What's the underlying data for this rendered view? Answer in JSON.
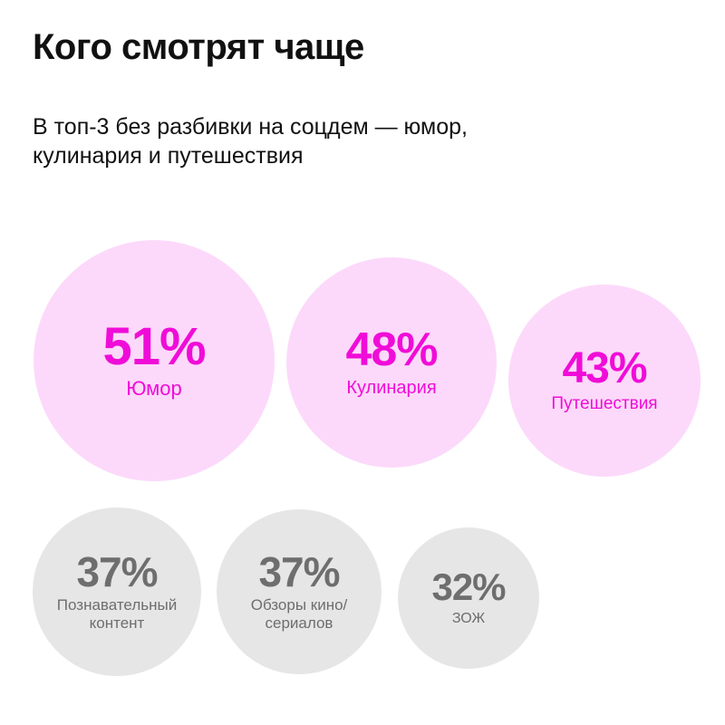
{
  "header": {
    "title": "Кого смотрят чаще",
    "subtitle": "В топ-3 без разбивки на соцдем — юмор, кулинария и путешествия"
  },
  "colors": {
    "top_fill": "#fcd9fa",
    "top_text": "#f00cd8",
    "rest_fill": "#e6e6e6",
    "rest_text": "#6e6e6e"
  },
  "chart_data": {
    "type": "bubble",
    "unit": "%",
    "categories": [
      "Юмор",
      "Кулинария",
      "Путешествия",
      "Познавательный контент",
      "Обзоры кино/сериалов",
      "ЗОЖ"
    ],
    "values": [
      51,
      48,
      43,
      37,
      37,
      32
    ],
    "highlighted": [
      true,
      true,
      true,
      false,
      false,
      false
    ],
    "items": [
      {
        "value": 51,
        "value_label": "51%",
        "label_lines": [
          "Юмор"
        ],
        "highlighted": true
      },
      {
        "value": 48,
        "value_label": "48%",
        "label_lines": [
          "Кулинария"
        ],
        "highlighted": true
      },
      {
        "value": 43,
        "value_label": "43%",
        "label_lines": [
          "Путешествия"
        ],
        "highlighted": true
      },
      {
        "value": 37,
        "value_label": "37%",
        "label_lines": [
          "Познавательный",
          "контент"
        ],
        "highlighted": false
      },
      {
        "value": 37,
        "value_label": "37%",
        "label_lines": [
          "Обзоры кино/",
          "сериалов"
        ],
        "highlighted": false
      },
      {
        "value": 32,
        "value_label": "32%",
        "label_lines": [
          "ЗОЖ"
        ],
        "highlighted": false
      }
    ]
  }
}
